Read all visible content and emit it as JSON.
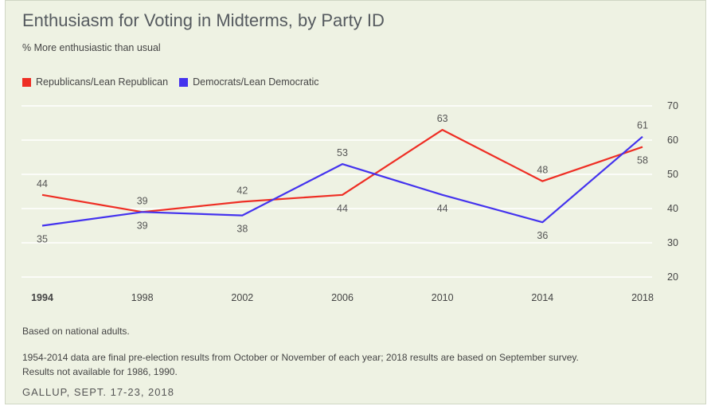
{
  "title": "Enthusiasm for Voting in Midterms, by Party ID",
  "subtitle": "% More enthusiastic than usual",
  "notes": [
    "Based on national adults.",
    "1954-2014 data are final pre-election results from October or November of each year; 2018 results are based on September survey. Results not available for 1986, 1990."
  ],
  "source": "GALLUP, SEPT. 17-23, 2018",
  "chart_data": {
    "type": "line",
    "title": "Enthusiasm for Voting in Midterms, by Party ID",
    "subtitle": "% More enthusiastic than usual",
    "x": [
      "1994",
      "1998",
      "2002",
      "2006",
      "2010",
      "2014",
      "2018"
    ],
    "ylim": [
      20,
      70
    ],
    "yticks": [
      20,
      30,
      40,
      50,
      60,
      70
    ],
    "grid": true,
    "legend": "top-left",
    "series": [
      {
        "name": "Republicans/Lean Republican",
        "color": "#ee2e24",
        "values": [
          44,
          39,
          42,
          44,
          63,
          48,
          58
        ]
      },
      {
        "name": "Democrats/Lean Democratic",
        "color": "#4433ee",
        "values": [
          35,
          39,
          38,
          53,
          44,
          36,
          61
        ]
      }
    ]
  }
}
